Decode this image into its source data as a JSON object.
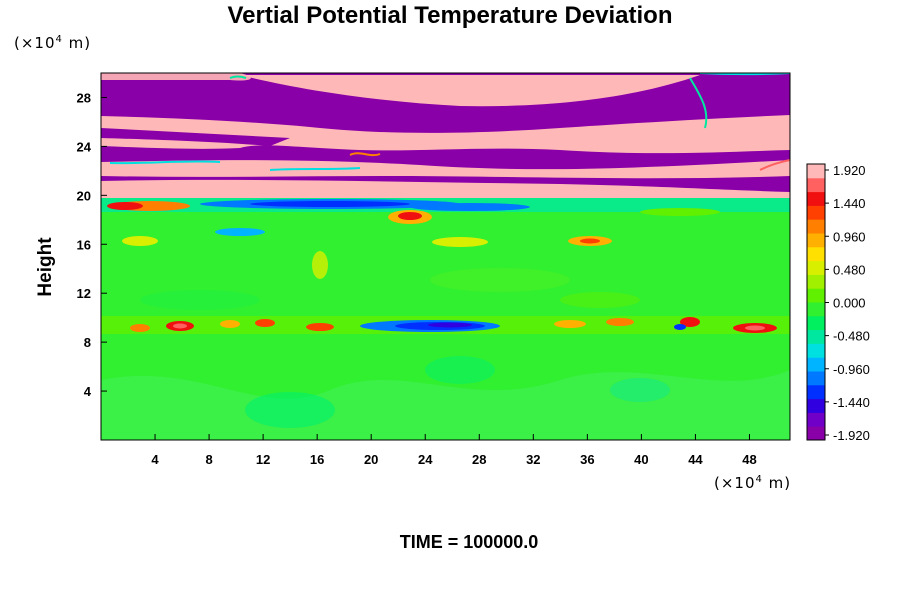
{
  "chart_data": {
    "type": "heatmap",
    "title": "Vertial Potential Temperature Deviation",
    "xlabel": "",
    "ylabel": "Height",
    "x_unit": "(×10⁴ m)",
    "y_unit": "(×10⁴ m)",
    "xlim": [
      0,
      51
    ],
    "ylim": [
      0,
      30
    ],
    "x_ticks": [
      "4",
      "8",
      "12",
      "16",
      "20",
      "24",
      "28",
      "32",
      "36",
      "40",
      "44",
      "48"
    ],
    "y_ticks": [
      "4",
      "8",
      "12",
      "16",
      "20",
      "24",
      "28"
    ],
    "colorbar_labels": [
      "1.920",
      "1.440",
      "0.960",
      "0.480",
      "0.000",
      "-0.480",
      "-0.960",
      "-1.440",
      "-1.920"
    ],
    "colorbar_range": [
      -1.92,
      1.92
    ],
    "colorbar_colors": [
      "#8a00a8",
      "#7000c8",
      "#3000e0",
      "#0030ff",
      "#0078ff",
      "#00b4ff",
      "#00e0e0",
      "#00e8a0",
      "#00f060",
      "#30f030",
      "#60f000",
      "#a0f000",
      "#d8f000",
      "#ffe000",
      "#ffb000",
      "#ff8000",
      "#ff4000",
      "#f01010",
      "#ff6060",
      "#ffb8b8"
    ],
    "grid": false
  },
  "footer": {
    "time_label": "TIME = 100000.0"
  }
}
